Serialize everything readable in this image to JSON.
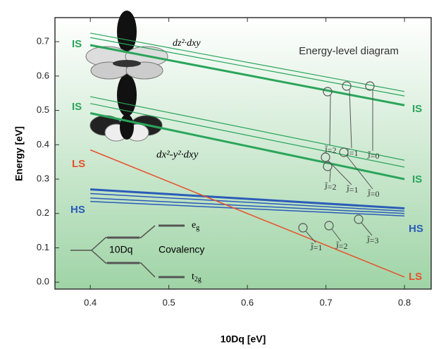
{
  "chart_data": {
    "type": "line",
    "title": "Energy-level diagram",
    "x_label": "10Dq [eV]",
    "y_label": "Energy [eV]",
    "x": [
      0.4,
      0.8
    ],
    "xlim": [
      0.355,
      0.834
    ],
    "ylim": [
      -0.02,
      0.77
    ],
    "xticks": [
      0.4,
      0.5,
      0.6,
      0.7,
      0.8
    ],
    "yticks": [
      {
        "value": 0,
        "label": "0.0"
      },
      0.1,
      0.2,
      0.3,
      0.4,
      0.5,
      0.6,
      0.7
    ],
    "series": [
      {
        "color": "#2aa55a",
        "line_width": 1.2,
        "values": [
          0.725,
          0.555
        ]
      },
      {
        "color": "#2aa55a",
        "line_width": 1.2,
        "values": [
          0.712,
          0.542
        ]
      },
      {
        "color": "#2aa55a",
        "line_width": 3,
        "values": [
          0.69,
          0.515
        ]
      },
      {
        "color": "#2aa55a",
        "line_width": 1.2,
        "values": [
          0.54,
          0.355
        ]
      },
      {
        "color": "#2aa55a",
        "line_width": 1.2,
        "values": [
          0.52,
          0.335
        ]
      },
      {
        "color": "#2aa55a",
        "line_width": 3,
        "values": [
          0.492,
          0.3
        ]
      },
      {
        "color": "#2a5cb8",
        "line_width": 3,
        "values": [
          0.27,
          0.215
        ]
      },
      {
        "color": "#2a5cb8",
        "line_width": 1.5,
        "values": [
          0.258,
          0.207
        ]
      },
      {
        "color": "#2a5cb8",
        "line_width": 1.5,
        "values": [
          0.245,
          0.2
        ]
      },
      {
        "color": "#2a5cb8",
        "line_width": 1.5,
        "values": [
          0.235,
          0.193
        ]
      },
      {
        "color": "#e8502a",
        "line_width": 1.5,
        "values": [
          0.385,
          0.015
        ]
      }
    ],
    "left_labels": [
      {
        "text": "IS",
        "color": "#2aa55a"
      },
      {
        "text": "IS",
        "color": "#2aa55a"
      },
      {
        "text": "LS",
        "color": "#e8502a"
      },
      {
        "text": "HS",
        "color": "#2a5cb8"
      }
    ],
    "right_labels": [
      {
        "text": "IS",
        "color": "#2aa55a"
      },
      {
        "text": "IS",
        "color": "#2aa55a"
      },
      {
        "text": "HS",
        "color": "#2a5cb8"
      },
      {
        "text": "LS",
        "color": "#e8502a"
      }
    ],
    "orbital_labels": [
      "dz²·dxy",
      "dx²-y²·dxy"
    ],
    "annotations": [
      "J̃=2",
      "J̃=1",
      "J̃=0",
      "J̃=2",
      "J̃=1",
      "J̃=0",
      "J̃=1",
      "J̃=2",
      "J̃=3"
    ],
    "inset": {
      "eg": [
        "e",
        "g"
      ],
      "t2g": [
        "t",
        "2g"
      ],
      "splitting": "10Dq",
      "covalency": "Covalency"
    }
  }
}
